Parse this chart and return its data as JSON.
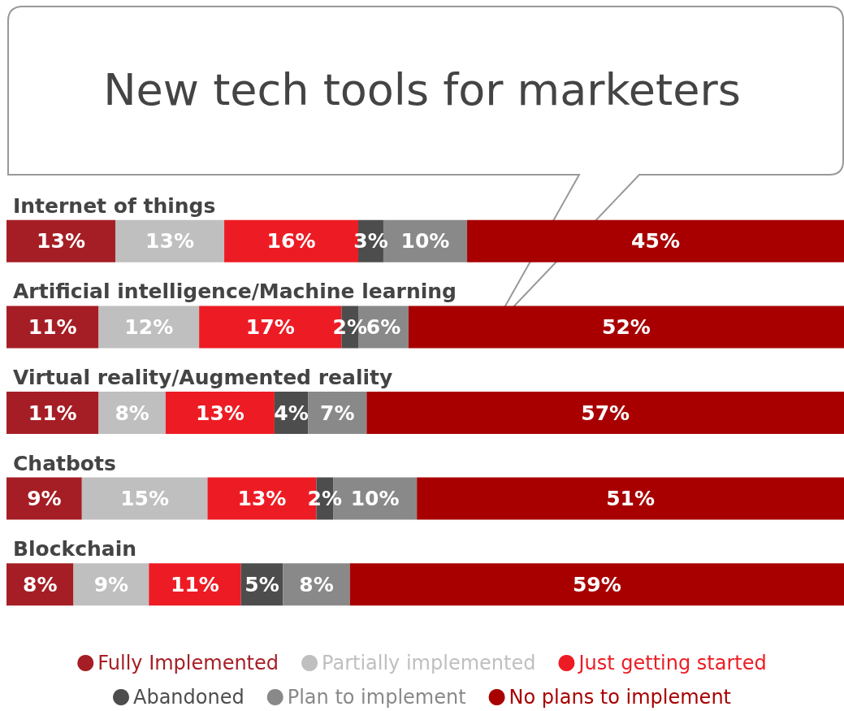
{
  "chart_data": {
    "type": "bar",
    "orientation": "horizontal",
    "stacked": true,
    "title": "New tech tools for marketers",
    "categories": [
      "Internet of things",
      "Artificial intelligence/Machine learning",
      "Virtual reality/Augmented reality",
      "Chatbots",
      "Blockchain"
    ],
    "xlim": [
      0,
      100
    ],
    "legend": "bottom",
    "series": [
      {
        "name": "Fully Implemented",
        "color": "#a61e25",
        "values": [
          13,
          11,
          11,
          9,
          8
        ],
        "value_labels": [
          "13%",
          "11%",
          "11%",
          "9%",
          "8%"
        ]
      },
      {
        "name": "Partially implemented",
        "color": "#bfbfbf",
        "values": [
          13,
          12,
          8,
          15,
          9
        ],
        "value_labels": [
          "13%",
          "12%",
          "8%",
          "15%",
          "9%"
        ]
      },
      {
        "name": "Just getting started",
        "color": "#ed1c24",
        "values": [
          16,
          17,
          13,
          13,
          11
        ],
        "value_labels": [
          "16%",
          "17%",
          "13%",
          "13%",
          "11%"
        ]
      },
      {
        "name": "Abandoned",
        "color": "#4d4d4d",
        "values": [
          3,
          2,
          4,
          2,
          5
        ],
        "value_labels": [
          "3%",
          "2%",
          "4%",
          "2%",
          "5%"
        ]
      },
      {
        "name": "Plan to implement",
        "color": "#898989",
        "values": [
          10,
          6,
          7,
          10,
          8
        ],
        "value_labels": [
          "10%",
          "6%",
          "7%",
          "10%",
          "8%"
        ]
      },
      {
        "name": "No plans to implement",
        "color": "#a80000",
        "values": [
          45,
          52,
          57,
          51,
          59
        ],
        "value_labels": [
          "45%",
          "52%",
          "57%",
          "51%",
          "59%"
        ]
      }
    ]
  }
}
